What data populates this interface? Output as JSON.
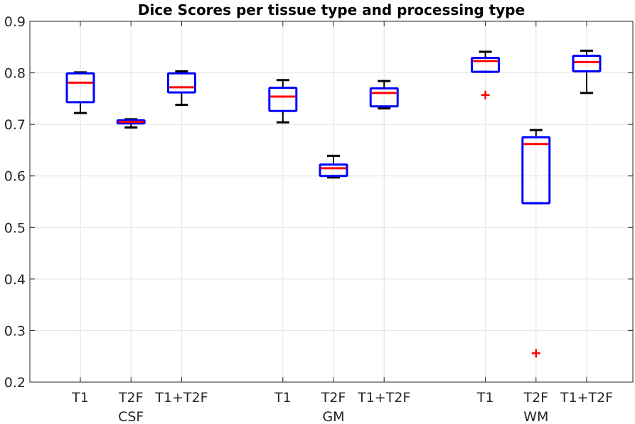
{
  "chart_data": {
    "type": "boxplot",
    "title": "Dice Scores per tissue type and processing type",
    "xlabel": "",
    "ylabel": "",
    "ylim": [
      0.2,
      0.9
    ],
    "yticks": [
      "0.2",
      "0.3",
      "0.4",
      "0.5",
      "0.6",
      "0.7",
      "0.8",
      "0.9"
    ],
    "grid": true,
    "colors": {
      "box": "#0000ff",
      "median": "#ff0000",
      "whisker": "#000000",
      "outlier": "#ff0000"
    },
    "groups": [
      {
        "label": "CSF",
        "boxes": [
          {
            "label": "T1",
            "min": 0.722,
            "q1": 0.743,
            "median": 0.781,
            "q3": 0.799,
            "max": 0.801,
            "outliers": []
          },
          {
            "label": "T2F",
            "min": 0.694,
            "q1": 0.702,
            "median": 0.705,
            "q3": 0.708,
            "max": 0.71,
            "outliers": []
          },
          {
            "label": "T1+T2F",
            "min": 0.738,
            "q1": 0.762,
            "median": 0.772,
            "q3": 0.799,
            "max": 0.803,
            "outliers": []
          }
        ]
      },
      {
        "label": "GM",
        "boxes": [
          {
            "label": "T1",
            "min": 0.704,
            "q1": 0.726,
            "median": 0.754,
            "q3": 0.771,
            "max": 0.786,
            "outliers": []
          },
          {
            "label": "T2F",
            "min": 0.597,
            "q1": 0.6,
            "median": 0.615,
            "q3": 0.622,
            "max": 0.639,
            "outliers": []
          },
          {
            "label": "T1+T2F",
            "min": 0.731,
            "q1": 0.735,
            "median": 0.761,
            "q3": 0.77,
            "max": 0.784,
            "outliers": []
          }
        ]
      },
      {
        "label": "WM",
        "boxes": [
          {
            "label": "T1",
            "min": 0.802,
            "q1": 0.802,
            "median": 0.823,
            "q3": 0.829,
            "max": 0.841,
            "outliers": [
              0.757
            ]
          },
          {
            "label": "T2F",
            "min": 0.547,
            "q1": 0.547,
            "median": 0.662,
            "q3": 0.675,
            "max": 0.689,
            "outliers": [
              0.256
            ]
          },
          {
            "label": "T1+T2F",
            "min": 0.761,
            "q1": 0.803,
            "median": 0.821,
            "q3": 0.833,
            "max": 0.843,
            "outliers": []
          }
        ]
      }
    ]
  }
}
